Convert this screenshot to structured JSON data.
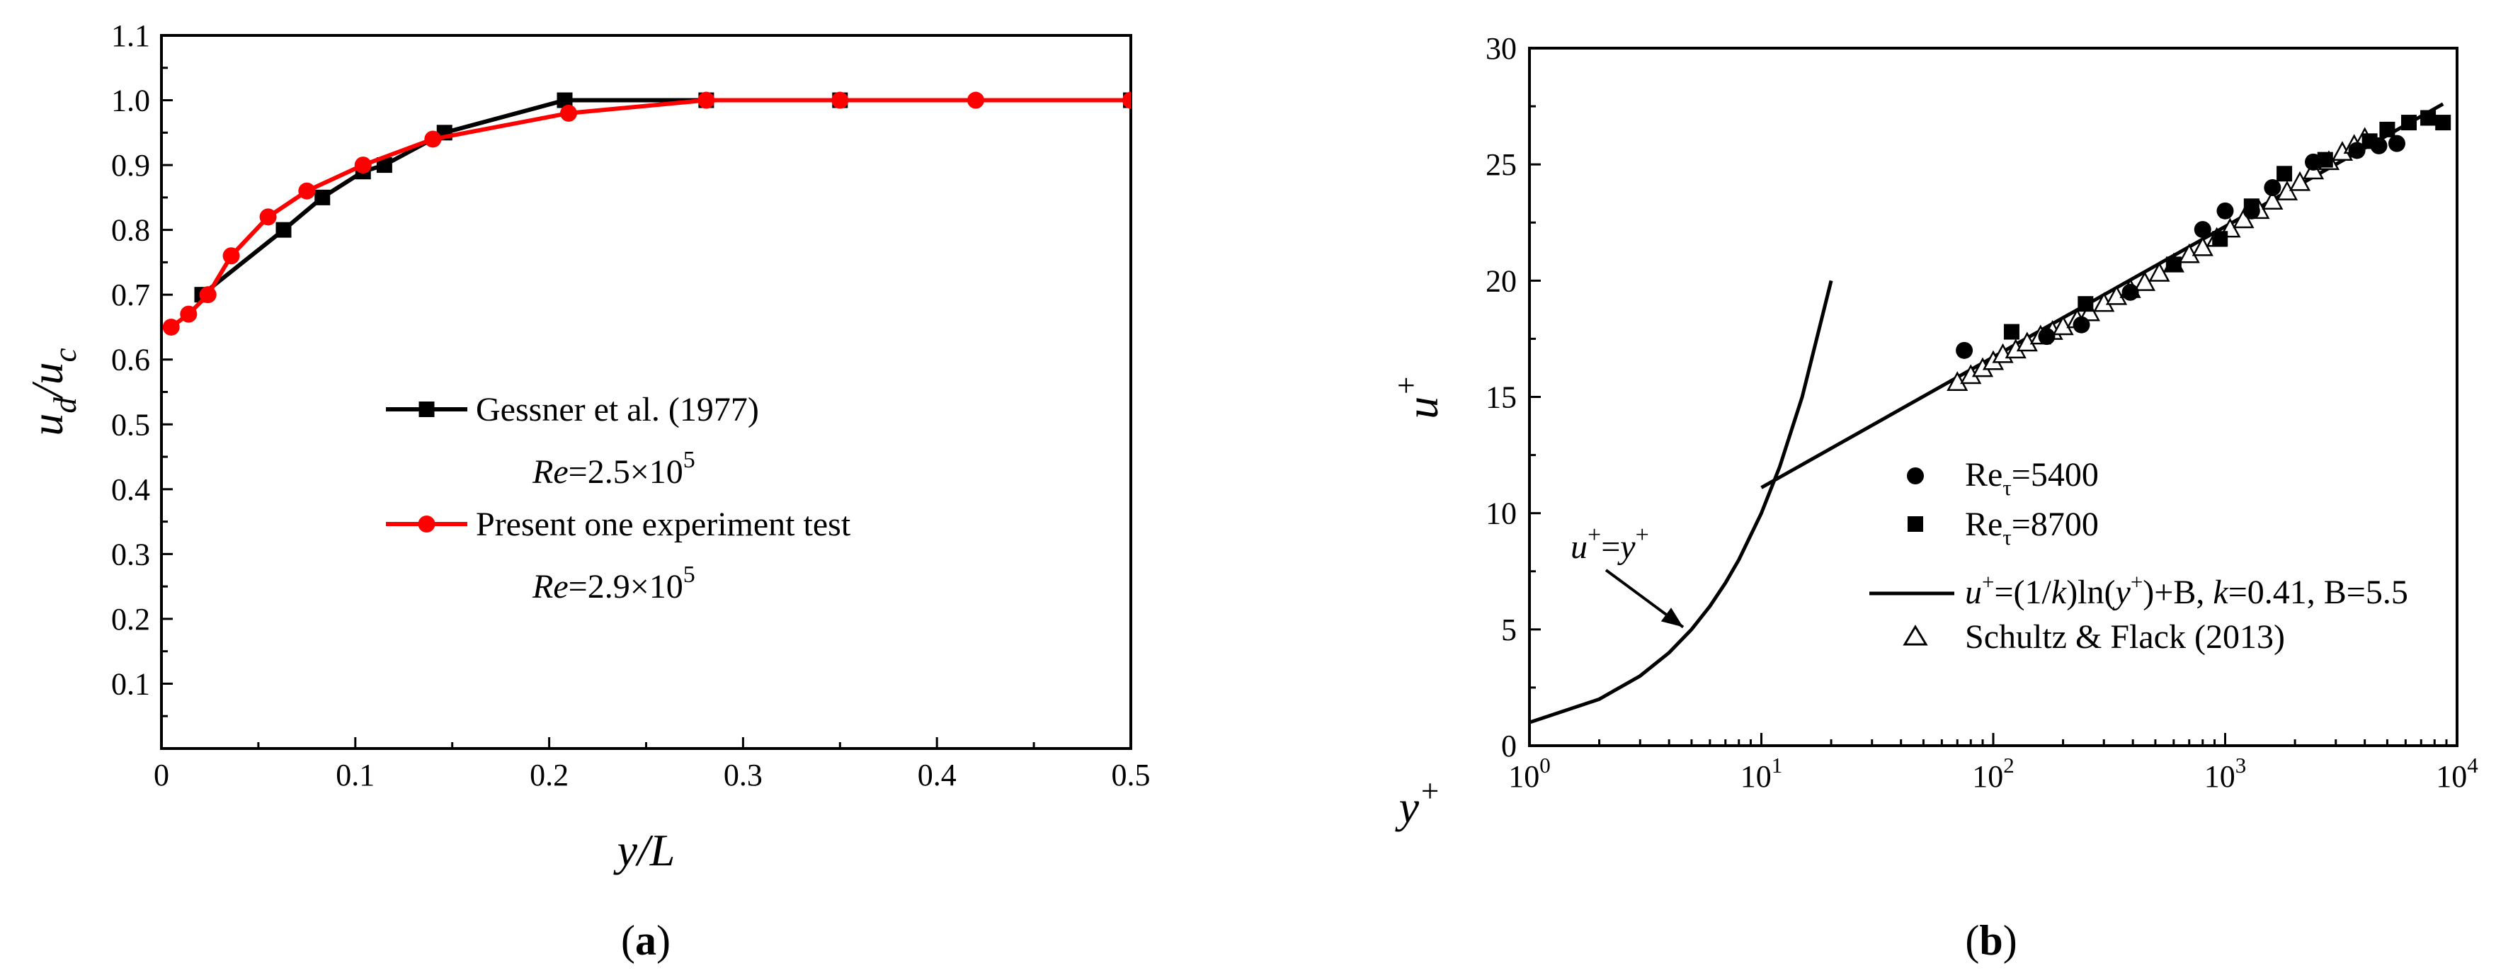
{
  "chart_data": [
    {
      "type": "line",
      "panel_label": "a",
      "xlabel": "y/L",
      "ylabel": "u_d/u_c",
      "xlim": [
        0,
        0.5
      ],
      "ylim": [
        0,
        1.1
      ],
      "xticks": [
        "0",
        "0.1",
        "0.2",
        "0.3",
        "0.4",
        "0.5"
      ],
      "yticks": [
        "0.1",
        "0.2",
        "0.3",
        "0.4",
        "0.5",
        "0.6",
        "0.7",
        "0.8",
        "0.9",
        "1.0",
        "1.1"
      ],
      "grid": false,
      "legend_position": "center-right",
      "series": [
        {
          "name": "Gessner et al. (1977)",
          "note": "Re=2.5×10^5",
          "marker": "square",
          "color": "#000000",
          "x": [
            0.021,
            0.063,
            0.083,
            0.104,
            0.115,
            0.146,
            0.208,
            0.281,
            0.35,
            0.5
          ],
          "y": [
            0.7,
            0.8,
            0.85,
            0.89,
            0.9,
            0.95,
            1.0,
            1.0,
            1.0,
            1.0
          ]
        },
        {
          "name": "Present one experiment test",
          "note": "Re=2.9×10^5",
          "marker": "circle",
          "color": "#ff0000",
          "x": [
            0.005,
            0.014,
            0.024,
            0.036,
            0.055,
            0.075,
            0.104,
            0.14,
            0.21,
            0.281,
            0.35,
            0.42,
            0.5
          ],
          "y": [
            0.65,
            0.67,
            0.7,
            0.76,
            0.82,
            0.86,
            0.9,
            0.94,
            0.98,
            1.0,
            1.0,
            1.0,
            1.0
          ]
        }
      ]
    },
    {
      "type": "scatter",
      "panel_label": "b",
      "xlabel": "y+",
      "ylabel": "u+",
      "xscale": "log",
      "xlim": [
        1,
        10000
      ],
      "ylim": [
        0,
        30
      ],
      "xticks": [
        "10^0",
        "10^1",
        "10^2",
        "10^3",
        "10^4"
      ],
      "yticks": [
        "0",
        "5",
        "10",
        "15",
        "20",
        "25",
        "30"
      ],
      "grid": false,
      "legend_position": "bottom-right",
      "annotation": "u+=y+",
      "series": [
        {
          "name": "Reτ=5400",
          "marker": "filled-circle",
          "x": [
            75,
            170,
            240,
            390,
            800,
            1000,
            1300,
            1600,
            2400,
            3700,
            4600,
            5500
          ],
          "y": [
            17.0,
            17.6,
            18.1,
            19.5,
            22.2,
            23.0,
            23.0,
            24.0,
            25.1,
            25.6,
            25.8,
            25.9
          ]
        },
        {
          "name": "Reτ=8700",
          "marker": "filled-square",
          "x": [
            120,
            250,
            600,
            950,
            1300,
            1800,
            2700,
            4200,
            5000,
            6200,
            7500,
            8700
          ],
          "y": [
            17.8,
            19.0,
            20.7,
            21.8,
            23.2,
            24.6,
            25.2,
            26.0,
            26.5,
            26.8,
            27.0,
            26.8
          ]
        },
        {
          "name": "u+=(1/k)ln(y+)+B, k=0.41, B=5.5",
          "marker": "line",
          "x": [
            10,
            8700
          ],
          "y": [
            11.1,
            27.6
          ]
        },
        {
          "name": "u+=y+",
          "marker": "line",
          "x": [
            1,
            2,
            3,
            4,
            5,
            6,
            7,
            8,
            10,
            12,
            15,
            20
          ],
          "y": [
            1,
            2,
            3,
            4,
            5,
            6,
            7,
            8,
            10,
            12,
            15,
            20
          ]
        },
        {
          "name": "Schultz & Flack (2013)",
          "marker": "open-triangle",
          "x": [
            70,
            80,
            90,
            100,
            110,
            125,
            140,
            160,
            180,
            200,
            230,
            260,
            300,
            340,
            390,
            450,
            520,
            600,
            700,
            800,
            920,
            1050,
            1200,
            1400,
            1600,
            1850,
            2100,
            2400,
            2800,
            3200,
            3600,
            4000
          ],
          "y": [
            15.6,
            15.9,
            16.2,
            16.5,
            16.8,
            17.0,
            17.3,
            17.6,
            17.8,
            18.0,
            18.3,
            18.6,
            19.0,
            19.3,
            19.6,
            19.9,
            20.3,
            20.7,
            21.1,
            21.4,
            21.8,
            22.2,
            22.6,
            23.0,
            23.4,
            23.8,
            24.2,
            24.7,
            25.1,
            25.5,
            25.8,
            26.1
          ]
        }
      ]
    }
  ]
}
